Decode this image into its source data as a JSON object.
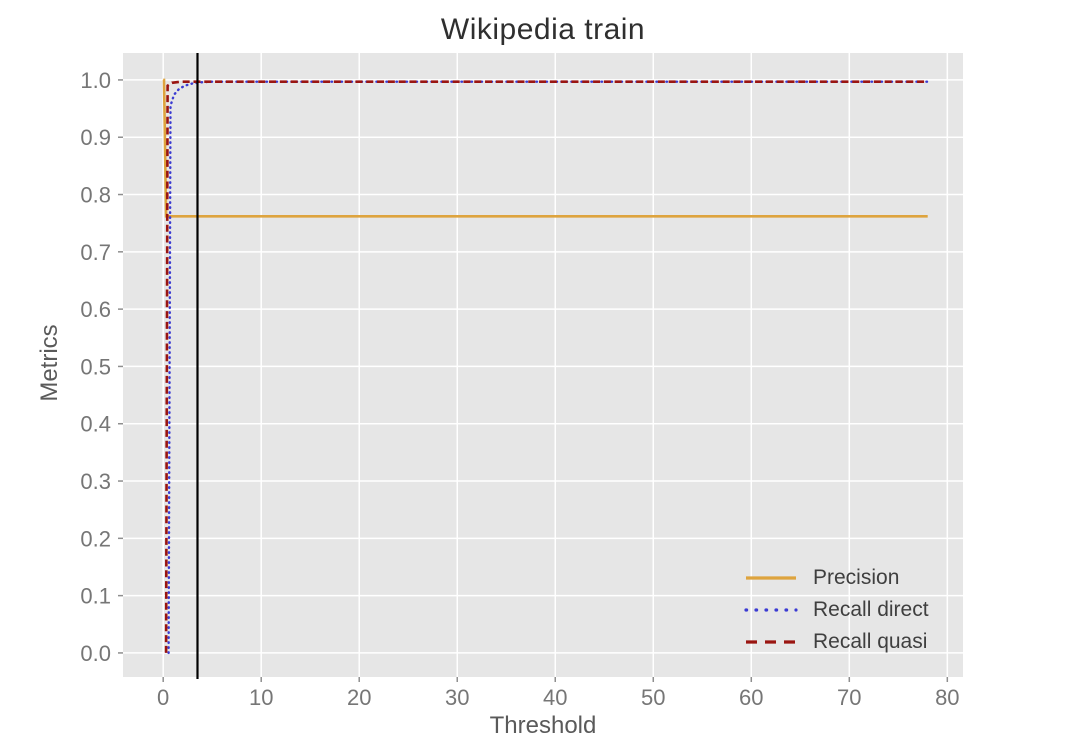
{
  "figure": {
    "title": "Wikipedia train",
    "xlabel": "Threshold",
    "ylabel": "Metrics"
  },
  "chart_data": {
    "type": "line",
    "title": "Wikipedia train",
    "xlabel": "Threshold",
    "ylabel": "Metrics",
    "xlim": [
      -4.1,
      81.6
    ],
    "ylim": [
      -0.042,
      1.047
    ],
    "xticks": [
      0,
      10,
      20,
      30,
      40,
      50,
      60,
      70,
      80
    ],
    "xtick_labels": [
      "0",
      "10",
      "20",
      "30",
      "40",
      "50",
      "60",
      "70",
      "80"
    ],
    "yticks": [
      0.0,
      0.1,
      0.2,
      0.3,
      0.4,
      0.5,
      0.6,
      0.7,
      0.8,
      0.9,
      1.0
    ],
    "ytick_labels": [
      "0.0",
      "0.1",
      "0.2",
      "0.3",
      "0.4",
      "0.5",
      "0.6",
      "0.7",
      "0.8",
      "0.9",
      "1.0"
    ],
    "grid": true,
    "plot_background": "#e6e6e6",
    "grid_color": "#ffffff",
    "tick_color": "#8e8e8e",
    "tick_label_color": "#767676",
    "legend": {
      "position": "lower right",
      "frame": false
    },
    "series": [
      {
        "name": "Precision",
        "color": "#dea43e",
        "style": "solid",
        "width": 2.6,
        "points": [
          [
            0,
            1.0
          ],
          [
            0.08,
            1.0
          ],
          [
            0.3,
            0.762
          ],
          [
            78,
            0.762
          ]
        ]
      },
      {
        "name": "Recall direct",
        "color": "#3b3bd2",
        "style": "dotted",
        "width": 2.4,
        "points": [
          [
            0.55,
            0.0
          ],
          [
            0.75,
            0.955
          ],
          [
            1.1,
            0.974
          ],
          [
            1.6,
            0.984
          ],
          [
            2.2,
            0.99
          ],
          [
            3.0,
            0.994
          ],
          [
            4.0,
            0.996
          ],
          [
            5.0,
            0.997
          ],
          [
            78,
            0.997
          ]
        ]
      },
      {
        "name": "Recall quasi",
        "color": "#9a1511",
        "style": "dashed",
        "width": 2.6,
        "points": [
          [
            0.3,
            0.0
          ],
          [
            0.45,
            0.99
          ],
          [
            0.9,
            0.995
          ],
          [
            1.8,
            0.997
          ],
          [
            78,
            0.997
          ]
        ]
      }
    ],
    "vline": {
      "x": 3.5,
      "color": "#000000",
      "width": 2.2
    }
  }
}
